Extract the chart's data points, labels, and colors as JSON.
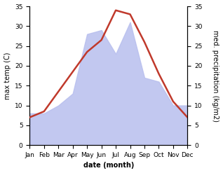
{
  "months": [
    "Jan",
    "Feb",
    "Mar",
    "Apr",
    "May",
    "Jun",
    "Jul",
    "Aug",
    "Sep",
    "Oct",
    "Nov",
    "Dec"
  ],
  "temperature": [
    7.0,
    8.5,
    13.5,
    18.5,
    23.5,
    26.5,
    34.0,
    33.0,
    26.0,
    18.0,
    11.0,
    7.0
  ],
  "precipitation": [
    8,
    8,
    10,
    13,
    28,
    29,
    23,
    31,
    17,
    16,
    10,
    10
  ],
  "temp_color": "#c0392b",
  "precip_fill_color": "#b8bfee",
  "xlabel": "date (month)",
  "ylabel_left": "max temp (C)",
  "ylabel_right": "med. precipitation (kg/m2)",
  "ylim": [
    0,
    35
  ],
  "yticks": [
    0,
    5,
    10,
    15,
    20,
    25,
    30,
    35
  ],
  "temp_linewidth": 1.8,
  "label_fontsize": 7,
  "tick_fontsize": 6.5
}
